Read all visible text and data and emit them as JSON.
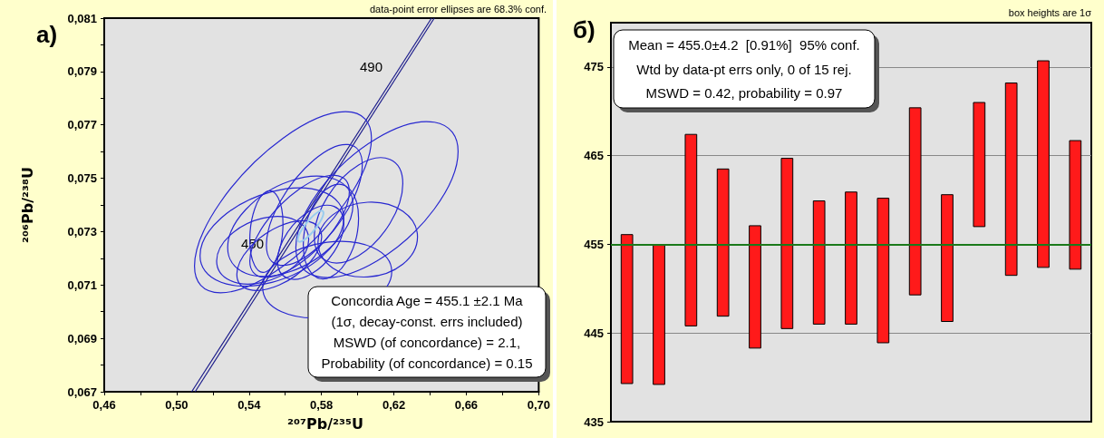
{
  "chart_data": [
    {
      "type": "line",
      "xlabel": "²⁰⁷Pb/²³⁵U",
      "ylabel": "²⁰⁶Pb/²³⁸U",
      "annotations": [
        "a)",
        "data-point error ellipses are 68.3% conf.",
        "Concordia Age = 455.1 ±2.1 Ma",
        "(1σ, decay-const. errs included)",
        "MSWD (of concordance) = 2.1,",
        "Probability (of concordance) = 0.15",
        "450",
        "490"
      ],
      "xlim": [
        0.46,
        0.7
      ],
      "xticks": [
        {
          "value": 0.46,
          "label": "0,46"
        },
        {
          "value": 0.48,
          "label": null
        },
        {
          "value": 0.5,
          "label": "0,50"
        },
        {
          "value": 0.52,
          "label": null
        },
        {
          "value": 0.54,
          "label": "0,54"
        },
        {
          "value": 0.56,
          "label": null
        },
        {
          "value": 0.58,
          "label": "0,58"
        },
        {
          "value": 0.6,
          "label": null
        },
        {
          "value": 0.62,
          "label": "0,62"
        },
        {
          "value": 0.64,
          "label": null
        },
        {
          "value": 0.66,
          "label": "0,66"
        },
        {
          "value": 0.68,
          "label": null
        },
        {
          "value": 0.7,
          "label": "0,70"
        }
      ],
      "ylim": [
        0.067,
        0.081
      ],
      "yticks": [
        {
          "value": 0.067,
          "label": "0,067"
        },
        {
          "value": 0.068,
          "label": null
        },
        {
          "value": 0.069,
          "label": "0,069"
        },
        {
          "value": 0.07,
          "label": null
        },
        {
          "value": 0.071,
          "label": "0,071"
        },
        {
          "value": 0.072,
          "label": null
        },
        {
          "value": 0.073,
          "label": "0,073"
        },
        {
          "value": 0.074,
          "label": null
        },
        {
          "value": 0.075,
          "label": "0,075"
        },
        {
          "value": 0.076,
          "label": null
        },
        {
          "value": 0.077,
          "label": "0,077"
        },
        {
          "value": 0.078,
          "label": null
        },
        {
          "value": 0.079,
          "label": "0,079"
        },
        {
          "value": 0.08,
          "label": null
        },
        {
          "value": 0.081,
          "label": "0,081"
        }
      ],
      "grid": false,
      "marker": "none",
      "line_style": "solid",
      "series": [
        {
          "color": "#1c1c8a",
          "x": [
            0.5083,
            0.6408
          ],
          "values": [
            0.067,
            0.081
          ]
        },
        {
          "color": "#1c1c8a",
          "x": [
            0.5102,
            0.6423
          ],
          "values": [
            0.067,
            0.081
          ]
        }
      ]
    },
    {
      "type": "bar",
      "categories": [
        null,
        null,
        null,
        null,
        null,
        null,
        null,
        null,
        null,
        null,
        null,
        null,
        null,
        null,
        null
      ],
      "annotations": [
        "б)",
        "box heights are 1σ",
        "Mean = 455.0±4.2  [0.91%]  95% conf.",
        "Wtd by data-pt errs only, 0 of 15 rej.",
        "MSWD = 0.42, probability = 0.97"
      ],
      "ylim": [
        435,
        480
      ],
      "yticks": [
        435,
        445,
        455,
        465,
        475
      ],
      "grid": "y",
      "ref_lines": [
        {
          "axis": "y",
          "value": 455,
          "color": "#1a7a1a"
        }
      ],
      "color": "#ff1a1a",
      "base": [
        439.3,
        439.2,
        445.8,
        446.9,
        443.3,
        445.5,
        446.0,
        446.0,
        443.9,
        449.3,
        446.3,
        457.0,
        451.5,
        452.4,
        452.2
      ],
      "values": [
        16.8,
        15.7,
        21.6,
        16.6,
        13.8,
        19.2,
        13.9,
        14.9,
        16.3,
        21.1,
        14.3,
        14.0,
        21.7,
        23.3,
        14.5
      ]
    }
  ]
}
